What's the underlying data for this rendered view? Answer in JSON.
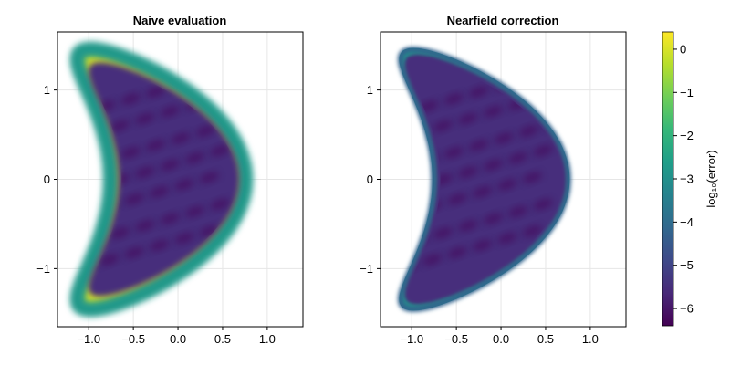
{
  "chart_data": [
    {
      "type": "heatmap",
      "title": "Naive evaluation",
      "xlabel": "",
      "ylabel": "",
      "xlim": [
        -1.35,
        1.4
      ],
      "ylim": [
        -1.65,
        1.65
      ],
      "xticks": [
        -1.0,
        -0.5,
        0.0,
        0.5,
        1.0
      ],
      "xtick_labels": [
        "−1.0",
        "−0.5",
        "0.0",
        "0.5",
        "1.0"
      ],
      "yticks": [
        -1,
        0,
        1
      ],
      "ytick_labels": [
        "−1",
        "0",
        "1"
      ],
      "grid": true,
      "region": "kite-shaped domain (crescent) on [-1.25,1.25]x[-1.45,1.45]",
      "interior_log10_error": -5.5,
      "boundary_log10_error": 0.0,
      "boundary_layer": "wide, high error near the boundary"
    },
    {
      "type": "heatmap",
      "title": "Nearfield correction",
      "xlabel": "",
      "ylabel": "",
      "xlim": [
        -1.35,
        1.4
      ],
      "ylim": [
        -1.65,
        1.65
      ],
      "xticks": [
        -1.0,
        -0.5,
        0.0,
        0.5,
        1.0
      ],
      "xtick_labels": [
        "−1.0",
        "−0.5",
        "0.0",
        "0.5",
        "1.0"
      ],
      "yticks": [
        -1,
        0,
        1
      ],
      "ytick_labels": [
        "−1",
        "0",
        "1"
      ],
      "grid": true,
      "region": "kite-shaped domain (crescent) on [-1.25,1.25]x[-1.45,1.45]",
      "interior_log10_error": -5.5,
      "boundary_log10_error": -3.0,
      "boundary_layer": "thin, moderate error near the boundary"
    }
  ],
  "colorbar": {
    "label": "log₁₀(error)",
    "range": [
      -6.4,
      0.4
    ],
    "ticks": [
      0,
      -1,
      -2,
      -3,
      -4,
      -5,
      -6
    ],
    "tick_labels": [
      "0",
      "−1",
      "−2",
      "−3",
      "−4",
      "−5",
      "−6"
    ],
    "colormap": [
      "#440154",
      "#482878",
      "#3e4989",
      "#31688e",
      "#26828e",
      "#1f9e89",
      "#35b779",
      "#6ece58",
      "#b5de2b",
      "#fde725"
    ]
  }
}
